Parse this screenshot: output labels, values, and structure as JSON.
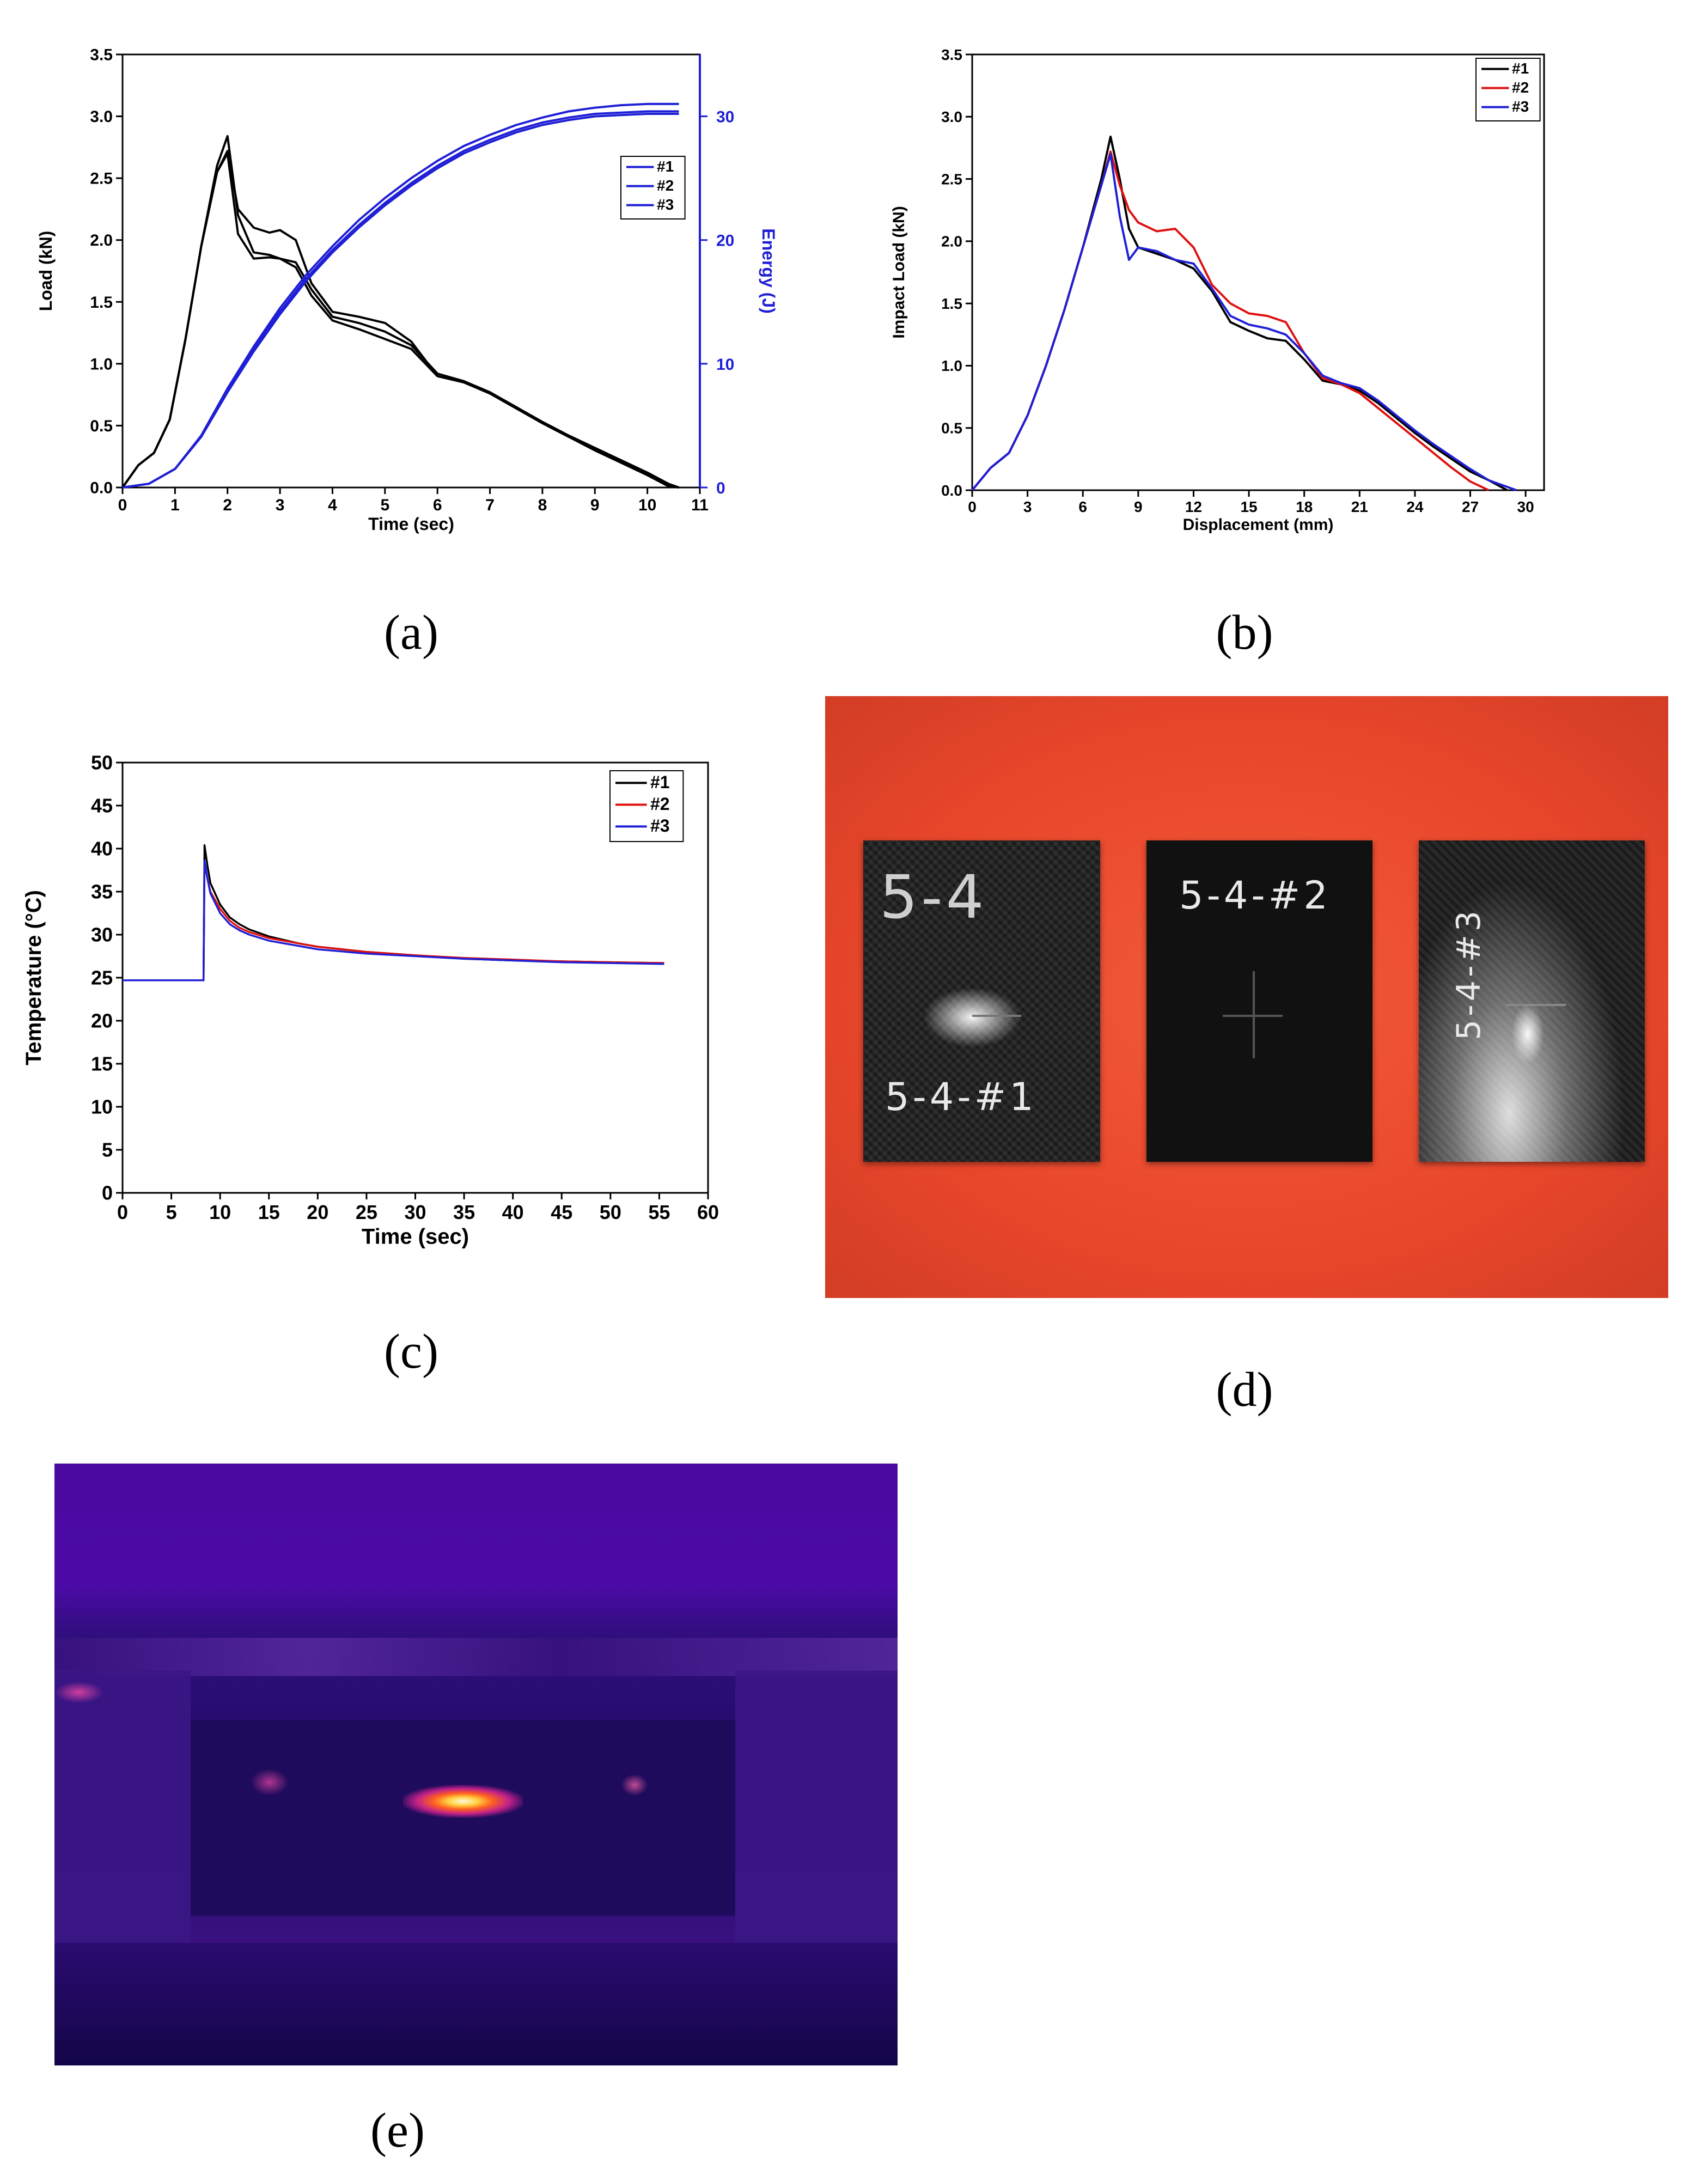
{
  "chart_data": [
    {
      "type": "line",
      "panel": "a",
      "xlabel": "Time (sec)",
      "ylabel": "Load (kN)",
      "y2label": "Energy (J)",
      "xlim": [
        0,
        11
      ],
      "ylim": [
        0,
        3.5
      ],
      "y2lim": [
        0,
        35
      ],
      "xticks": [
        "0",
        "1",
        "2",
        "3",
        "4",
        "5",
        "6",
        "7",
        "8",
        "9",
        "10",
        "11"
      ],
      "yticks": [
        "0.0",
        "0.5",
        "1.0",
        "1.5",
        "2.0",
        "2.5",
        "3.0",
        "3.5"
      ],
      "y2ticks": [
        "0",
        "10",
        "20",
        "30"
      ],
      "legend": [
        "#1",
        "#2",
        "#3"
      ],
      "legend_position": "right",
      "colors": {
        "load": "#000000",
        "energy": "#1f1fd6"
      },
      "series": [
        {
          "name": "#1",
          "axis": "load",
          "x": [
            0,
            0.3,
            0.6,
            0.9,
            1.2,
            1.5,
            1.8,
            2.0,
            2.2,
            2.5,
            2.8,
            3.0,
            3.3,
            3.6,
            4.0,
            4.5,
            5.0,
            5.5,
            6.0,
            6.5,
            7.0,
            7.5,
            8.0,
            8.5,
            9.0,
            9.5,
            10.0,
            10.4,
            10.6
          ],
          "y": [
            0,
            0.18,
            0.28,
            0.55,
            1.2,
            1.95,
            2.6,
            2.84,
            2.2,
            1.9,
            1.88,
            1.85,
            1.78,
            1.55,
            1.35,
            1.28,
            1.2,
            1.12,
            0.9,
            0.85,
            0.76,
            0.64,
            0.52,
            0.41,
            0.31,
            0.21,
            0.11,
            0.02,
            0.0
          ]
        },
        {
          "name": "#2",
          "axis": "load",
          "x": [
            0,
            0.3,
            0.6,
            0.9,
            1.2,
            1.5,
            1.8,
            2.0,
            2.2,
            2.5,
            2.8,
            3.0,
            3.3,
            3.6,
            4.0,
            4.5,
            5.0,
            5.5,
            6.0,
            6.5,
            7.0,
            7.5,
            8.0,
            8.5,
            9.0,
            9.5,
            10.0,
            10.4,
            10.6
          ],
          "y": [
            0,
            0.18,
            0.28,
            0.55,
            1.2,
            1.95,
            2.55,
            2.72,
            2.25,
            2.1,
            2.06,
            2.08,
            2.0,
            1.65,
            1.42,
            1.38,
            1.33,
            1.18,
            0.9,
            0.85,
            0.76,
            0.64,
            0.52,
            0.41,
            0.3,
            0.2,
            0.1,
            0.01,
            0.0
          ]
        },
        {
          "name": "#3",
          "axis": "load",
          "x": [
            0,
            0.3,
            0.6,
            0.9,
            1.2,
            1.5,
            1.8,
            2.0,
            2.2,
            2.5,
            2.8,
            3.0,
            3.3,
            3.6,
            4.0,
            4.5,
            5.0,
            5.5,
            6.0,
            6.5,
            7.0,
            7.5,
            8.0,
            8.5,
            9.0,
            9.5,
            10.0,
            10.4,
            10.6
          ],
          "y": [
            0,
            0.18,
            0.28,
            0.55,
            1.2,
            1.95,
            2.55,
            2.7,
            2.05,
            1.85,
            1.86,
            1.85,
            1.82,
            1.6,
            1.38,
            1.33,
            1.26,
            1.15,
            0.92,
            0.86,
            0.77,
            0.65,
            0.53,
            0.42,
            0.32,
            0.22,
            0.12,
            0.03,
            0.0
          ]
        },
        {
          "name": "#1",
          "axis": "energy",
          "x": [
            0,
            0.5,
            1,
            1.5,
            2,
            2.5,
            3,
            3.5,
            4,
            4.5,
            5,
            5.5,
            6,
            6.5,
            7,
            7.5,
            8,
            8.5,
            9,
            9.5,
            10,
            10.5,
            10.6
          ],
          "y": [
            0,
            0.3,
            1.5,
            4.2,
            8.0,
            11.4,
            14.5,
            17.2,
            19.5,
            21.6,
            23.4,
            25.0,
            26.4,
            27.6,
            28.5,
            29.3,
            29.9,
            30.4,
            30.7,
            30.9,
            31.0,
            31.0,
            31.0
          ]
        },
        {
          "name": "#2",
          "axis": "energy",
          "x": [
            0,
            0.5,
            1,
            1.5,
            2,
            2.5,
            3,
            3.5,
            4,
            4.5,
            5,
            5.5,
            6,
            6.5,
            7,
            7.5,
            8,
            8.5,
            9,
            9.5,
            10,
            10.5,
            10.6
          ],
          "y": [
            0,
            0.3,
            1.5,
            4.1,
            7.7,
            11.0,
            14.0,
            16.7,
            19.0,
            21.0,
            22.8,
            24.4,
            25.8,
            27.0,
            27.9,
            28.7,
            29.3,
            29.7,
            30.0,
            30.1,
            30.2,
            30.2,
            30.2
          ]
        },
        {
          "name": "#3",
          "axis": "energy",
          "x": [
            0,
            0.5,
            1,
            1.5,
            2,
            2.5,
            3,
            3.5,
            4,
            4.5,
            5,
            5.5,
            6,
            6.5,
            7,
            7.5,
            8,
            8.5,
            9,
            9.5,
            10,
            10.5,
            10.6
          ],
          "y": [
            0,
            0.3,
            1.5,
            4.1,
            7.8,
            11.2,
            14.2,
            16.9,
            19.2,
            21.2,
            23.0,
            24.6,
            26.0,
            27.2,
            28.1,
            28.9,
            29.5,
            29.9,
            30.2,
            30.3,
            30.4,
            30.4,
            30.4
          ]
        }
      ]
    },
    {
      "type": "line",
      "panel": "b",
      "xlabel": "Displacement (mm)",
      "ylabel": "Impact Load (kN)",
      "xlim": [
        0,
        31
      ],
      "ylim": [
        0,
        3.5
      ],
      "xticks": [
        "0",
        "3",
        "6",
        "9",
        "12",
        "15",
        "18",
        "21",
        "24",
        "27",
        "30"
      ],
      "yticks": [
        "0.0",
        "0.5",
        "1.0",
        "1.5",
        "2.0",
        "2.5",
        "3.0",
        "3.5"
      ],
      "legend": [
        "#1",
        "#2",
        "#3"
      ],
      "legend_position": "top-right",
      "colors": {
        "#1": "#000000",
        "#2": "#e01010",
        "#3": "#1f1fd6"
      },
      "series": [
        {
          "name": "#1",
          "x": [
            0,
            1,
            2,
            3,
            4,
            5,
            6,
            7,
            7.5,
            8,
            8.5,
            9,
            10,
            11,
            12,
            13,
            14,
            15,
            16,
            17,
            18,
            19,
            20,
            21,
            22,
            23,
            24,
            25,
            26,
            27,
            28,
            29
          ],
          "y": [
            0,
            0.18,
            0.3,
            0.6,
            1.0,
            1.45,
            1.95,
            2.5,
            2.84,
            2.5,
            2.1,
            1.95,
            1.9,
            1.85,
            1.78,
            1.6,
            1.35,
            1.28,
            1.22,
            1.2,
            1.05,
            0.88,
            0.85,
            0.8,
            0.7,
            0.58,
            0.46,
            0.35,
            0.25,
            0.15,
            0.08,
            0.0
          ]
        },
        {
          "name": "#2",
          "x": [
            0,
            1,
            2,
            3,
            4,
            5,
            6,
            7,
            7.5,
            8,
            8.5,
            9,
            10,
            11,
            12,
            13,
            14,
            15,
            16,
            17,
            18,
            19,
            20,
            21,
            22,
            23,
            24,
            25,
            26,
            27,
            28
          ],
          "y": [
            0,
            0.18,
            0.3,
            0.6,
            1.0,
            1.45,
            1.95,
            2.45,
            2.72,
            2.45,
            2.25,
            2.15,
            2.08,
            2.1,
            1.95,
            1.65,
            1.5,
            1.42,
            1.4,
            1.35,
            1.1,
            0.9,
            0.85,
            0.78,
            0.66,
            0.54,
            0.42,
            0.3,
            0.18,
            0.07,
            0.0
          ]
        },
        {
          "name": "#3",
          "x": [
            0,
            1,
            2,
            3,
            4,
            5,
            6,
            7,
            7.5,
            8,
            8.5,
            9,
            10,
            11,
            12,
            13,
            14,
            15,
            16,
            17,
            18,
            19,
            20,
            21,
            22,
            23,
            24,
            25,
            26,
            27,
            28,
            29.5
          ],
          "y": [
            0,
            0.18,
            0.3,
            0.6,
            1.0,
            1.45,
            1.95,
            2.45,
            2.7,
            2.2,
            1.85,
            1.95,
            1.92,
            1.85,
            1.82,
            1.62,
            1.4,
            1.33,
            1.3,
            1.25,
            1.1,
            0.92,
            0.86,
            0.82,
            0.72,
            0.6,
            0.48,
            0.37,
            0.27,
            0.17,
            0.08,
            0.0
          ]
        }
      ]
    },
    {
      "type": "line",
      "panel": "c",
      "xlabel": "Time (sec)",
      "ylabel": "Temperature (°C)",
      "xlim": [
        0,
        60
      ],
      "ylim": [
        0,
        50
      ],
      "xticks": [
        "0",
        "5",
        "10",
        "15",
        "20",
        "25",
        "30",
        "35",
        "40",
        "45",
        "50",
        "55",
        "60"
      ],
      "yticks": [
        "0",
        "5",
        "10",
        "15",
        "20",
        "25",
        "30",
        "35",
        "40",
        "45",
        "50"
      ],
      "legend": [
        "#1",
        "#2",
        "#3"
      ],
      "legend_position": "top-right",
      "colors": {
        "#1": "#000000",
        "#2": "#e01010",
        "#3": "#1f1fd6"
      },
      "series": [
        {
          "name": "#1",
          "x": [
            0,
            8.3,
            8.4,
            8.7,
            9,
            10,
            11,
            12,
            13,
            15,
            18,
            20,
            25,
            30,
            35,
            40,
            45,
            50,
            55.5
          ],
          "y": [
            24.7,
            24.7,
            40.4,
            38,
            36,
            33.5,
            32,
            31.2,
            30.6,
            29.8,
            29,
            28.6,
            28,
            27.6,
            27.2,
            27,
            26.9,
            26.8,
            26.7
          ]
        },
        {
          "name": "#2",
          "x": [
            0,
            8.3,
            8.4,
            8.7,
            9,
            10,
            11,
            12,
            13,
            15,
            18,
            20,
            25,
            30,
            35,
            40,
            45,
            50,
            55.5
          ],
          "y": [
            24.7,
            24.7,
            38.3,
            36.5,
            35,
            33,
            31.6,
            30.8,
            30.3,
            29.6,
            29,
            28.6,
            28,
            27.6,
            27.3,
            27.1,
            26.9,
            26.8,
            26.7
          ]
        },
        {
          "name": "#3",
          "x": [
            0,
            8.3,
            8.4,
            8.7,
            9,
            10,
            11,
            12,
            13,
            15,
            18,
            20,
            25,
            30,
            35,
            40,
            45,
            50,
            55.5
          ],
          "y": [
            24.7,
            24.7,
            38.6,
            36.5,
            34.8,
            32.5,
            31.2,
            30.5,
            30.0,
            29.3,
            28.7,
            28.3,
            27.8,
            27.5,
            27.2,
            27.0,
            26.8,
            26.7,
            26.6
          ]
        }
      ]
    }
  ],
  "captions": {
    "a": "(a)",
    "b": "(b)",
    "c": "(c)",
    "d": "(d)",
    "e": "(e)"
  },
  "photo_d": {
    "specimen_1_top": "5-4",
    "specimen_1_bottom": "5-4-#1",
    "specimen_2_top": "5-4-#2",
    "specimen_3_side": "5-4-#3"
  }
}
